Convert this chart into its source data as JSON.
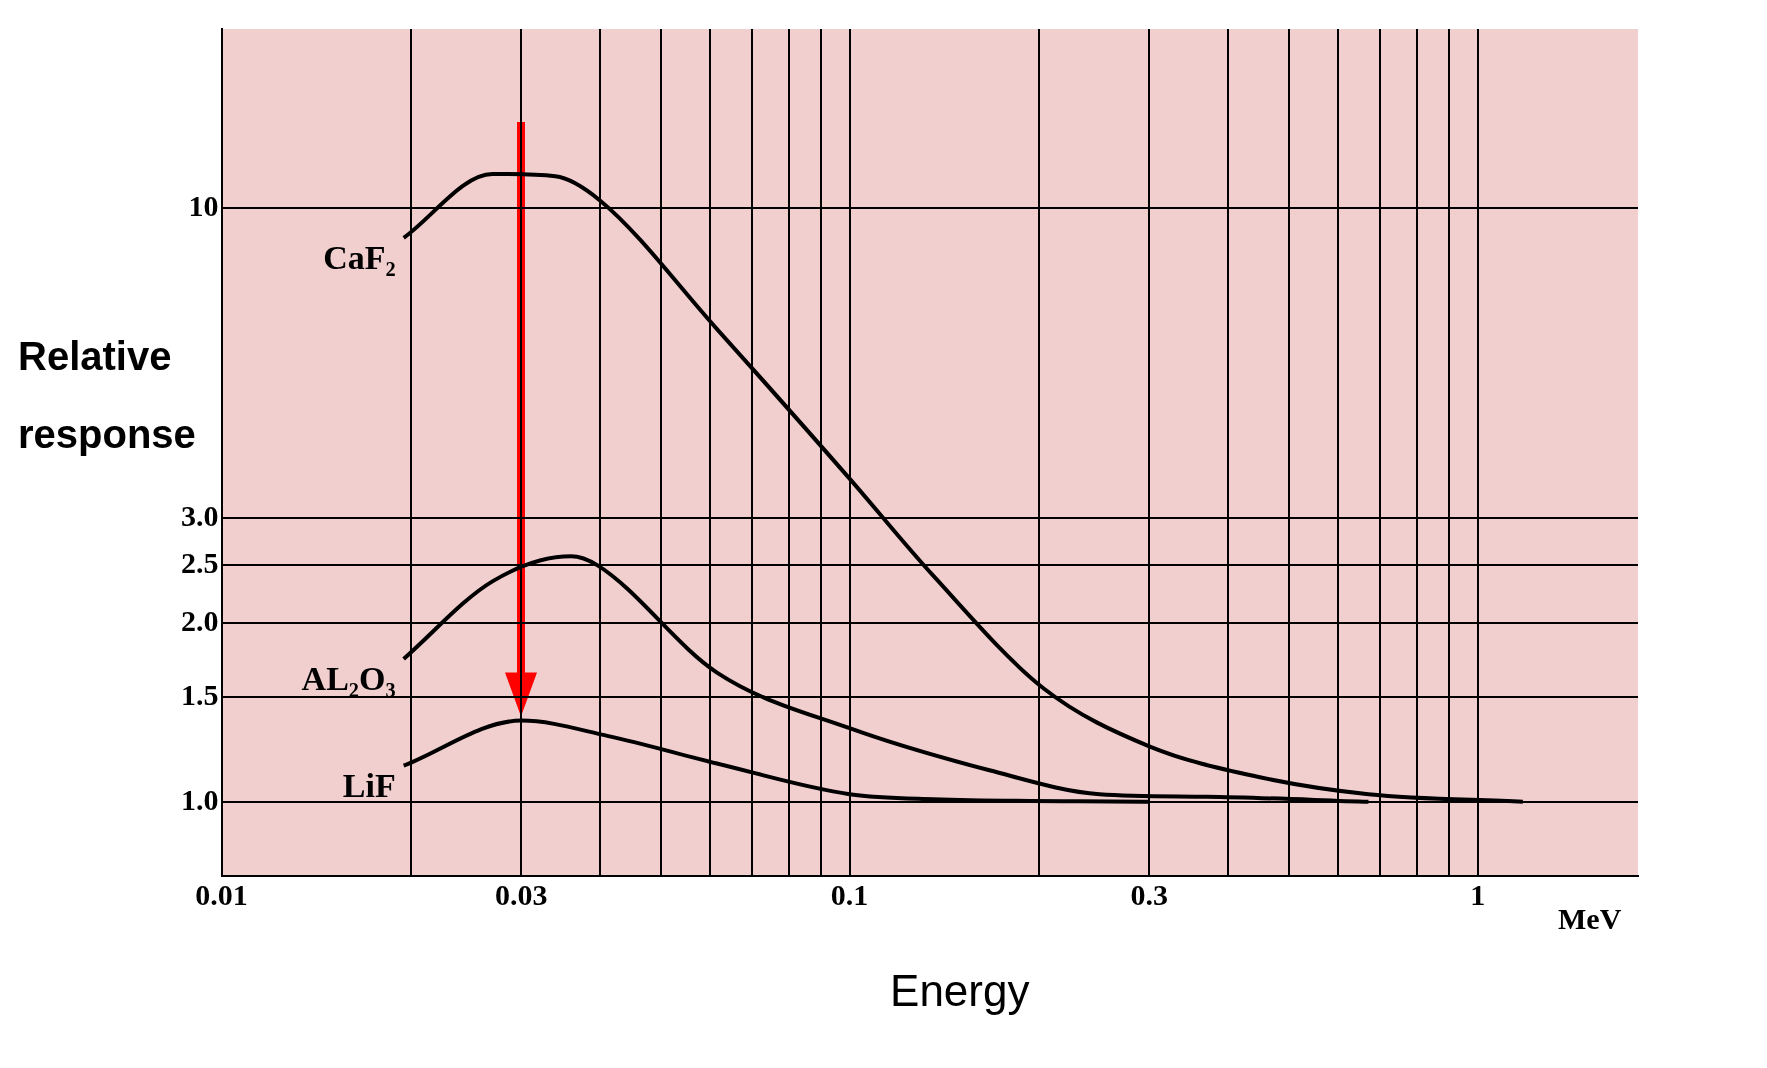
{
  "chart_data": {
    "type": "line",
    "xlabel": "Energy",
    "ylabel": "Relative response",
    "log": "xy",
    "grid": true,
    "marker": "none",
    "line_style": "solid",
    "legend": false,
    "annotations": [
      "MeV"
    ],
    "xlim": [
      0.01,
      1.8
    ],
    "ylim": [
      0.75,
      20
    ],
    "xticks": [
      0.01,
      {
        "value": 0.02,
        "label": null
      },
      0.03,
      {
        "value": 0.04,
        "label": null
      },
      {
        "value": 0.05,
        "label": null
      },
      {
        "value": 0.06,
        "label": null
      },
      {
        "value": 0.07,
        "label": null
      },
      {
        "value": 0.08,
        "label": null
      },
      {
        "value": 0.09,
        "label": null
      },
      0.1,
      {
        "value": 0.2,
        "label": null
      },
      0.3,
      {
        "value": 0.4,
        "label": null
      },
      {
        "value": 0.5,
        "label": null
      },
      {
        "value": 0.6,
        "label": null
      },
      {
        "value": 0.7,
        "label": null
      },
      {
        "value": 0.8,
        "label": null
      },
      {
        "value": 0.9,
        "label": null
      },
      1
    ],
    "yticks": [
      {
        "value": 1,
        "label": "1.0"
      },
      1.5,
      {
        "value": 2,
        "label": "2.0"
      },
      2.5,
      {
        "value": 3,
        "label": "3.0"
      },
      10
    ],
    "series": [
      {
        "name": "CaF₂",
        "color": "#000000",
        "x": [
          0.0195,
          0.027,
          0.034,
          0.04,
          0.0615,
          0.1,
          0.136,
          0.204,
          0.3,
          0.45,
          0.67,
          1.18
        ],
        "values": [
          8.9,
          11.4,
          11.3,
          10.3,
          6.25,
          3.5,
          2.4,
          1.55,
          1.24,
          1.1,
          1.03,
          1.0
        ]
      },
      {
        "name": "AL₂O₃",
        "color": "#000000",
        "x": [
          0.0195,
          0.027,
          0.036,
          0.0397,
          0.0615,
          0.1,
          0.167,
          0.25,
          0.37,
          0.67
        ],
        "values": [
          1.74,
          2.35,
          2.59,
          2.5,
          1.65,
          1.33,
          1.13,
          1.03,
          1.02,
          1.0
        ]
      },
      {
        "name": "LiF",
        "color": "#000000",
        "x": [
          0.0195,
          0.03,
          0.0413,
          0.0615,
          0.1,
          0.136,
          0.3
        ],
        "values": [
          1.15,
          1.37,
          1.29,
          1.16,
          1.03,
          1.01,
          1.0
        ]
      }
    ]
  }
}
